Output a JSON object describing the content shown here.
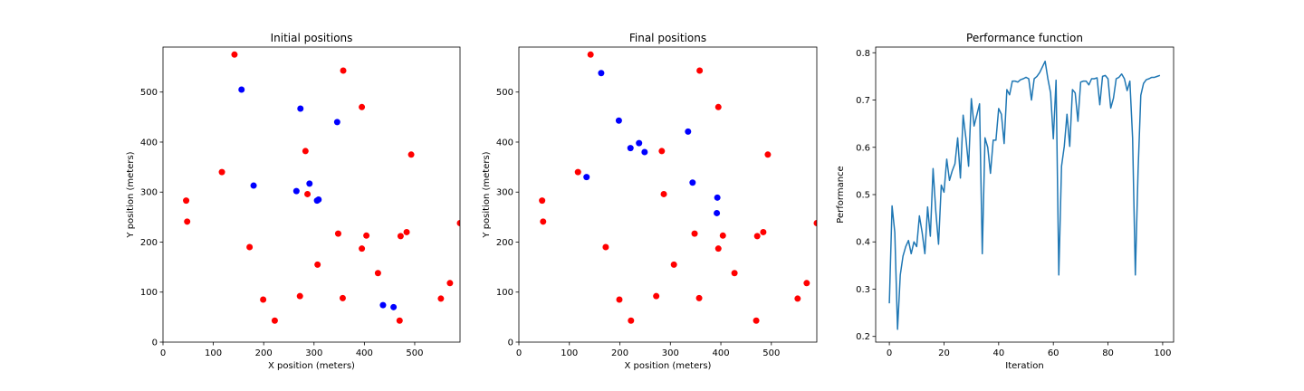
{
  "chart_data": [
    {
      "type": "scatter",
      "title": "Initial positions",
      "xlabel": "X position (meters)",
      "ylabel": "Y position (meters)",
      "xlim": [
        0,
        590
      ],
      "ylim": [
        0,
        590
      ],
      "xticks": [
        0,
        100,
        200,
        300,
        400,
        500
      ],
      "yticks": [
        0,
        100,
        200,
        300,
        400,
        500
      ],
      "grid": false,
      "series": [
        {
          "color": "#ff0000",
          "points": [
            [
              142,
              575
            ],
            [
              358,
              543
            ],
            [
              395,
              470
            ],
            [
              493,
              375
            ],
            [
              117,
              340
            ],
            [
              283,
              382
            ],
            [
              46,
              283
            ],
            [
              48,
              241
            ],
            [
              287,
              296
            ],
            [
              172,
              190
            ],
            [
              348,
              217
            ],
            [
              404,
              213
            ],
            [
              395,
              187
            ],
            [
              472,
              212
            ],
            [
              484,
              220
            ],
            [
              590,
              238
            ],
            [
              307,
              155
            ],
            [
              427,
              138
            ],
            [
              199,
              85
            ],
            [
              272,
              92
            ],
            [
              357,
              88
            ],
            [
              222,
              43
            ],
            [
              470,
              43
            ],
            [
              552,
              87
            ],
            [
              570,
              118
            ]
          ]
        },
        {
          "color": "#0000ff",
          "points": [
            [
              156,
              505
            ],
            [
              273,
              467
            ],
            [
              346,
              440
            ],
            [
              180,
              313
            ],
            [
              291,
              317
            ],
            [
              265,
              302
            ],
            [
              306,
              283
            ],
            [
              309,
              285
            ],
            [
              437,
              74
            ],
            [
              458,
              70
            ]
          ]
        }
      ]
    },
    {
      "type": "scatter",
      "title": "Final positions",
      "xlabel": "X position (meters)",
      "ylabel": "Y position (meters)",
      "xlim": [
        0,
        590
      ],
      "ylim": [
        0,
        590
      ],
      "xticks": [
        0,
        100,
        200,
        300,
        400,
        500
      ],
      "yticks": [
        0,
        100,
        200,
        300,
        400,
        500
      ],
      "grid": false,
      "series": [
        {
          "color": "#ff0000",
          "points": [
            [
              142,
              575
            ],
            [
              358,
              543
            ],
            [
              395,
              470
            ],
            [
              493,
              375
            ],
            [
              117,
              340
            ],
            [
              283,
              382
            ],
            [
              46,
              283
            ],
            [
              48,
              241
            ],
            [
              287,
              296
            ],
            [
              172,
              190
            ],
            [
              348,
              217
            ],
            [
              404,
              213
            ],
            [
              395,
              187
            ],
            [
              472,
              212
            ],
            [
              484,
              220
            ],
            [
              590,
              238
            ],
            [
              307,
              155
            ],
            [
              427,
              138
            ],
            [
              199,
              85
            ],
            [
              272,
              92
            ],
            [
              357,
              88
            ],
            [
              222,
              43
            ],
            [
              470,
              43
            ],
            [
              552,
              87
            ],
            [
              570,
              118
            ]
          ]
        },
        {
          "color": "#0000ff",
          "points": [
            [
              163,
              538
            ],
            [
              198,
              443
            ],
            [
              238,
              398
            ],
            [
              221,
              388
            ],
            [
              249,
              380
            ],
            [
              335,
              421
            ],
            [
              134,
              330
            ],
            [
              344,
              319
            ],
            [
              393,
              289
            ],
            [
              392,
              258
            ]
          ]
        }
      ]
    },
    {
      "type": "line",
      "title": "Performance function",
      "xlabel": "Iteration",
      "ylabel": "Performance",
      "xlim": [
        -5,
        104
      ],
      "ylim": [
        0.188,
        0.812
      ],
      "xticks": [
        0,
        20,
        40,
        60,
        80,
        100
      ],
      "yticks": [
        0.2,
        0.3,
        0.4,
        0.5,
        0.6,
        0.7,
        0.8
      ],
      "grid": false,
      "series": [
        {
          "color": "#1f77b4",
          "x": [
            0,
            1,
            2,
            3,
            4,
            5,
            6,
            7,
            8,
            9,
            10,
            11,
            12,
            13,
            14,
            15,
            16,
            17,
            18,
            19,
            20,
            21,
            22,
            23,
            24,
            25,
            26,
            27,
            28,
            29,
            30,
            31,
            32,
            33,
            34,
            35,
            36,
            37,
            38,
            39,
            40,
            41,
            42,
            43,
            44,
            45,
            46,
            47,
            48,
            49,
            50,
            51,
            52,
            53,
            54,
            55,
            56,
            57,
            58,
            59,
            60,
            61,
            62,
            63,
            64,
            65,
            66,
            67,
            68,
            69,
            70,
            71,
            72,
            73,
            74,
            75,
            76,
            77,
            78,
            79,
            80,
            81,
            82,
            83,
            84,
            85,
            86,
            87,
            88,
            89,
            90,
            91,
            92,
            93,
            94,
            95,
            96,
            97,
            98,
            99
          ],
          "y": [
            0.27,
            0.476,
            0.42,
            0.215,
            0.33,
            0.37,
            0.39,
            0.403,
            0.375,
            0.4,
            0.39,
            0.455,
            0.42,
            0.375,
            0.474,
            0.412,
            0.555,
            0.465,
            0.395,
            0.52,
            0.505,
            0.575,
            0.53,
            0.55,
            0.565,
            0.62,
            0.535,
            0.668,
            0.62,
            0.56,
            0.703,
            0.645,
            0.668,
            0.692,
            0.375,
            0.62,
            0.6,
            0.545,
            0.615,
            0.615,
            0.682,
            0.67,
            0.608,
            0.722,
            0.711,
            0.74,
            0.74,
            0.738,
            0.743,
            0.745,
            0.748,
            0.745,
            0.7,
            0.745,
            0.75,
            0.758,
            0.77,
            0.782,
            0.745,
            0.715,
            0.618,
            0.742,
            0.33,
            0.56,
            0.602,
            0.67,
            0.602,
            0.722,
            0.715,
            0.655,
            0.738,
            0.74,
            0.74,
            0.732,
            0.745,
            0.745,
            0.747,
            0.69,
            0.75,
            0.752,
            0.745,
            0.683,
            0.704,
            0.745,
            0.748,
            0.755,
            0.745,
            0.72,
            0.74,
            0.62,
            0.33,
            0.55,
            0.71,
            0.735,
            0.743,
            0.745,
            0.748,
            0.748,
            0.75,
            0.752
          ]
        }
      ]
    }
  ]
}
